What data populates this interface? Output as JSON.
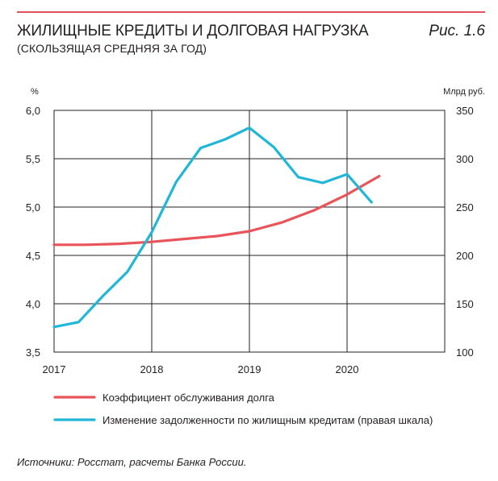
{
  "header": {
    "title": "ЖИЛИЩНЫЕ КРЕДИТЫ И ДОЛГОВАЯ НАГРУЗКА",
    "subtitle": "(СКОЛЬЗЯЩАЯ СРЕДНЯЯ ЗА ГОД)",
    "figure_label": "Рис. 1.6"
  },
  "footer": {
    "source": "Источники: Росстат, расчеты Банка России."
  },
  "chart_data": {
    "type": "line",
    "title": "ЖИЛИЩНЫЕ КРЕДИТЫ И ДОЛГОВАЯ НАГРУЗКА",
    "subtitle": "(СКОЛЬЗЯЩАЯ СРЕДНЯЯ ЗА ГОД)",
    "left_axis": {
      "unit": "%",
      "ylim": [
        3.5,
        6.0
      ],
      "ticks": [
        "6,0",
        "5,5",
        "5,0",
        "4,5",
        "4,0",
        "3,5"
      ],
      "tick_values": [
        6.0,
        5.5,
        5.0,
        4.5,
        4.0,
        3.5
      ]
    },
    "right_axis": {
      "unit": "Млрд руб.",
      "ylim": [
        100,
        350
      ],
      "ticks": [
        "350",
        "300",
        "250",
        "200",
        "150",
        "100"
      ],
      "tick_values": [
        350,
        300,
        250,
        200,
        150,
        100
      ]
    },
    "x_axis": {
      "xlim": [
        2017,
        2021
      ],
      "ticks": [
        "2017",
        "2018",
        "2019",
        "2020"
      ],
      "tick_values": [
        2017,
        2018,
        2019,
        2020
      ]
    },
    "grid": true,
    "legend_position": "bottom",
    "series": [
      {
        "name": "Коэффициент обслуживания долга",
        "axis": "left",
        "color": "#e8545a",
        "x": [
          2017.0,
          2017.33,
          2017.67,
          2018.0,
          2018.33,
          2018.67,
          2019.0,
          2019.33,
          2019.67,
          2020.0,
          2020.33
        ],
        "values": [
          4.61,
          4.61,
          4.62,
          4.64,
          4.67,
          4.7,
          4.75,
          4.84,
          4.97,
          5.13,
          5.32
        ]
      },
      {
        "name": "Изменение задолженности по жилищным кредитам (правая шкала)",
        "axis": "right",
        "color": "#1fb6d8",
        "x": [
          2017.0,
          2017.25,
          2017.5,
          2017.75,
          2018.0,
          2018.25,
          2018.5,
          2018.75,
          2019.0,
          2019.25,
          2019.5,
          2019.75,
          2020.0,
          2020.25
        ],
        "values": [
          126,
          131,
          158,
          183,
          224,
          276,
          311,
          320,
          332,
          312,
          281,
          275,
          284,
          255
        ]
      }
    ]
  }
}
